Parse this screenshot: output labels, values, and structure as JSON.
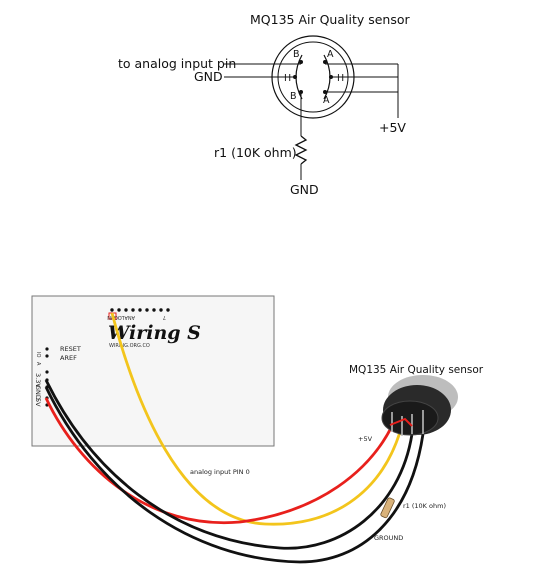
{
  "schematic": {
    "title": "MQ135 Air Quality sensor",
    "label_analog": "to analog input pin",
    "label_gnd_left": "GND",
    "label_plus5v": "+5V",
    "label_resistor": "r1 (10K ohm)",
    "label_gnd_bottom": "GND",
    "pins": [
      "B",
      "H",
      "B",
      "A",
      "H",
      "A"
    ]
  },
  "breadboard": {
    "board_logo": "Wiring S",
    "board_url": "WIRING.ORG.CO",
    "header_label": "ANALOG IN",
    "header_num": "7",
    "side_labels": [
      "RESET",
      "AREF"
    ],
    "rot_labels": [
      "3.3V",
      "GND",
      "5V"
    ],
    "rot_small": [
      "IO",
      "A"
    ],
    "sensor_title": "MQ135 Air Quality sensor",
    "label_plus5v": "+5V",
    "label_analog": "analog input PIN 0",
    "label_resistor": "r1 (10K ohm)",
    "label_ground": "GROUND"
  },
  "colors": {
    "wire_red": "#e8201c",
    "wire_yellow": "#f3c51c",
    "wire_black": "#111111",
    "board_fill": "#f6f6f6",
    "sensor_body": "#2a2a2a"
  }
}
